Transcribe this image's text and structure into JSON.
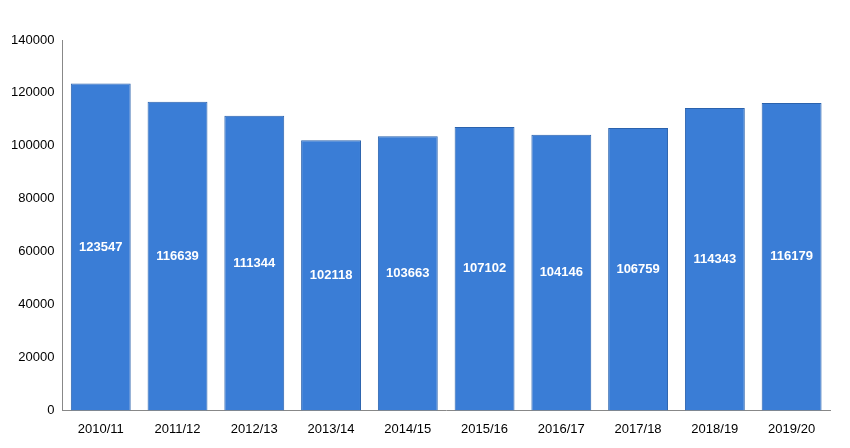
{
  "chart_data": {
    "type": "bar",
    "categories": [
      "2010/11",
      "2011/12",
      "2012/13",
      "2013/14",
      "2014/15",
      "2015/16",
      "2016/17",
      "2017/18",
      "2018/19",
      "2019/20"
    ],
    "values": [
      123547,
      116639,
      111344,
      102118,
      103663,
      107102,
      104146,
      106759,
      114343,
      116179
    ],
    "color": "#3a7dd6",
    "ylim": [
      0,
      140000
    ],
    "yticks": [
      0,
      20000,
      40000,
      60000,
      80000,
      100000,
      120000,
      140000
    ],
    "grid": false,
    "data_labels": true
  }
}
